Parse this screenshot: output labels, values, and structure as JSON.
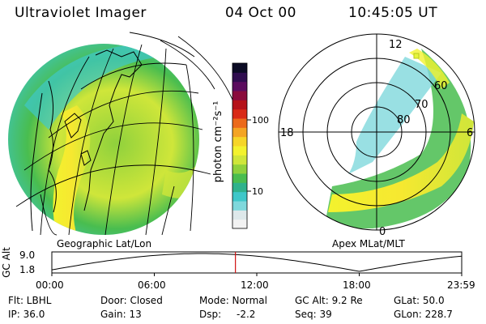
{
  "header": {
    "instrument": "Ultraviolet Imager",
    "date": "04 Oct 00",
    "time": "10:45:05 UT"
  },
  "colorbar": {
    "unit_label": "photon cm⁻²s⁻¹",
    "tick_labels": [
      "100",
      "10"
    ],
    "colors": [
      "#f2f2f2",
      "#dde8ea",
      "#7fd8dc",
      "#3ec7c9",
      "#2fb28c",
      "#49bd4f",
      "#8fd13c",
      "#cfe63a",
      "#f3f22e",
      "#f6d528",
      "#f4a423",
      "#ec6a1b",
      "#d92a17",
      "#b5121a",
      "#8a0b3c",
      "#5b0c5e",
      "#2f0d4f",
      "#0b0b24"
    ]
  },
  "left_panel": {
    "label": "Geographic Lat/Lon"
  },
  "right_panel": {
    "label": "Apex MLat/MLT",
    "mlt_labels": {
      "top": "12",
      "left": "18",
      "right": "6",
      "bottom": "0"
    },
    "mlat_labels": [
      "60",
      "70",
      "80"
    ]
  },
  "altitude_plot": {
    "axis_label": "GC Alt",
    "y_ticks": [
      "9.0",
      "1.8"
    ],
    "x_ticks": [
      "00:00",
      "06:00",
      "12:00",
      "18:00",
      "23:59"
    ],
    "current_time_hours": 10.75,
    "marker_color": "#d01010"
  },
  "status": {
    "row1": {
      "filter": "Flt: LBHL",
      "door": "Door: Closed",
      "mode": "Mode: Normal",
      "gc_alt": "GC Alt: 9.2 Re",
      "glat": "GLat:  50.0"
    },
    "row2": {
      "ip": "IP: 36.0",
      "gain": "Gain: 13",
      "dsp_label": "Dsp:",
      "dsp_value": "-2.2",
      "seq": "Seq: 39",
      "glon": "GLon: 228.7"
    }
  }
}
